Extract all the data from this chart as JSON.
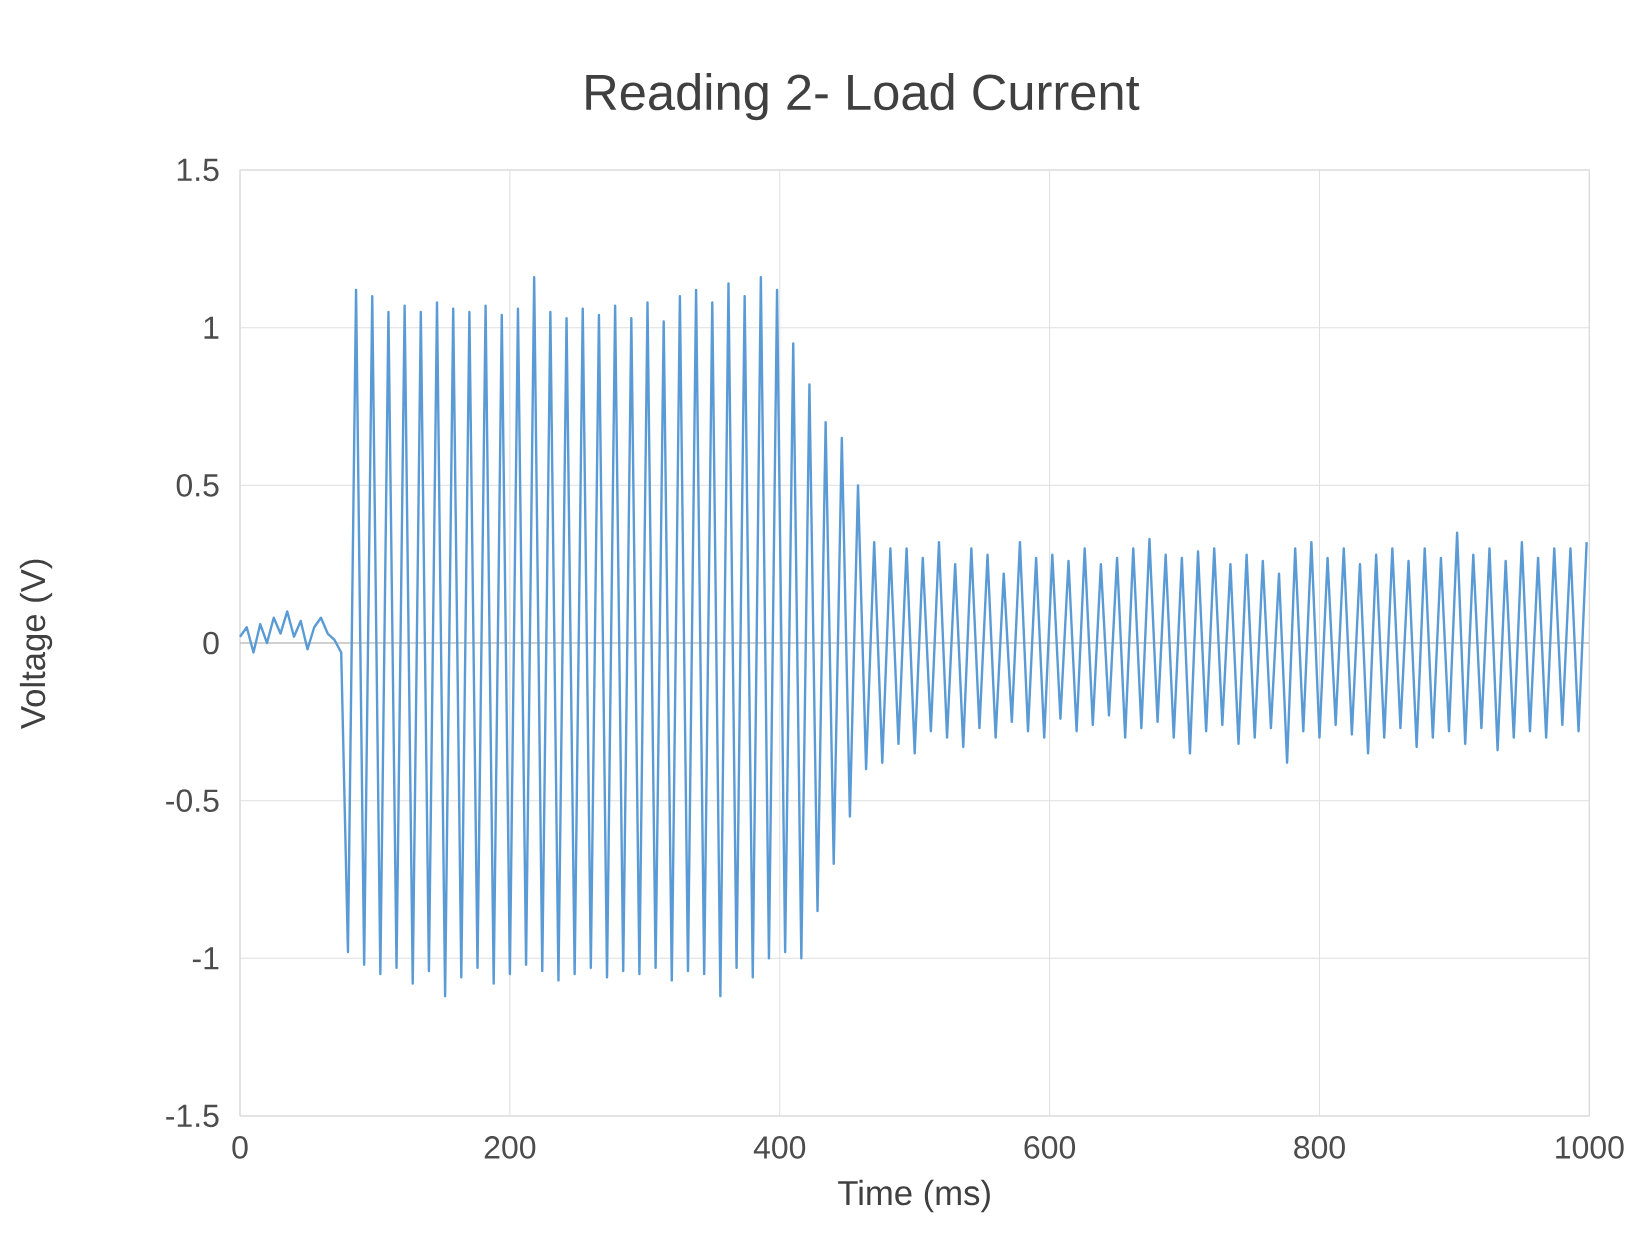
{
  "chart_data": {
    "type": "line",
    "title": "Reading 2- Load Current",
    "xlabel": "Time (ms)",
    "ylabel": "Voltage (V)",
    "xlim": [
      0,
      1000
    ],
    "ylim": [
      -1.5,
      1.5
    ],
    "xticks": [
      0,
      200,
      400,
      600,
      800,
      1000
    ],
    "yticks": [
      -1.5,
      -1,
      -0.5,
      0,
      0.5,
      1,
      1.5
    ],
    "grid": true,
    "x": [
      0,
      5,
      10,
      15,
      20,
      25,
      30,
      35,
      40,
      45,
      50,
      55,
      60,
      65,
      70,
      75,
      80,
      86,
      92,
      98,
      104,
      110,
      116,
      122,
      128,
      134,
      140,
      146,
      152,
      158,
      164,
      170,
      176,
      182,
      188,
      194,
      200,
      206,
      212,
      218,
      224,
      230,
      236,
      242,
      248,
      254,
      260,
      266,
      272,
      278,
      284,
      290,
      296,
      302,
      308,
      314,
      320,
      326,
      332,
      338,
      344,
      350,
      356,
      362,
      368,
      374,
      380,
      386,
      392,
      398,
      404,
      410,
      416,
      422,
      428,
      434,
      440,
      446,
      452,
      458,
      464,
      470,
      476,
      482,
      488,
      494,
      500,
      506,
      512,
      518,
      524,
      530,
      536,
      542,
      548,
      554,
      560,
      566,
      572,
      578,
      584,
      590,
      596,
      602,
      608,
      614,
      620,
      626,
      632,
      638,
      644,
      650,
      656,
      662,
      668,
      674,
      680,
      686,
      692,
      698,
      704,
      710,
      716,
      722,
      728,
      734,
      740,
      746,
      752,
      758,
      764,
      770,
      776,
      782,
      788,
      794,
      800,
      806,
      812,
      818,
      824,
      830,
      836,
      842,
      848,
      854,
      860,
      866,
      872,
      878,
      884,
      890,
      896,
      902,
      908,
      914,
      920,
      926,
      932,
      938,
      944,
      950,
      956,
      962,
      968,
      974,
      980,
      986,
      992,
      998
    ],
    "series": [
      {
        "color": "#5b9bd5",
        "values": [
          0.02,
          0.05,
          -0.03,
          0.06,
          0.0,
          0.08,
          0.03,
          0.1,
          0.02,
          0.07,
          -0.02,
          0.05,
          0.08,
          0.03,
          0.01,
          -0.03,
          -0.98,
          1.12,
          -1.02,
          1.1,
          -1.05,
          1.05,
          -1.03,
          1.07,
          -1.08,
          1.05,
          -1.04,
          1.08,
          -1.12,
          1.06,
          -1.06,
          1.05,
          -1.03,
          1.07,
          -1.08,
          1.04,
          -1.05,
          1.06,
          -1.02,
          1.16,
          -1.04,
          1.05,
          -1.07,
          1.03,
          -1.05,
          1.06,
          -1.03,
          1.04,
          -1.06,
          1.07,
          -1.04,
          1.03,
          -1.05,
          1.08,
          -1.03,
          1.02,
          -1.07,
          1.1,
          -1.04,
          1.12,
          -1.05,
          1.08,
          -1.12,
          1.14,
          -1.03,
          1.1,
          -1.06,
          1.16,
          -1.0,
          1.12,
          -0.98,
          0.95,
          -1.0,
          0.82,
          -0.85,
          0.7,
          -0.7,
          0.65,
          -0.55,
          0.5,
          -0.4,
          0.32,
          -0.38,
          0.3,
          -0.32,
          0.3,
          -0.35,
          0.27,
          -0.28,
          0.32,
          -0.3,
          0.25,
          -0.33,
          0.3,
          -0.27,
          0.28,
          -0.3,
          0.22,
          -0.25,
          0.32,
          -0.28,
          0.27,
          -0.3,
          0.28,
          -0.24,
          0.26,
          -0.28,
          0.3,
          -0.26,
          0.25,
          -0.23,
          0.27,
          -0.3,
          0.3,
          -0.27,
          0.33,
          -0.25,
          0.28,
          -0.3,
          0.27,
          -0.35,
          0.29,
          -0.28,
          0.3,
          -0.26,
          0.25,
          -0.32,
          0.28,
          -0.3,
          0.26,
          -0.27,
          0.22,
          -0.38,
          0.3,
          -0.28,
          0.32,
          -0.3,
          0.27,
          -0.26,
          0.3,
          -0.29,
          0.25,
          -0.35,
          0.28,
          -0.3,
          0.3,
          -0.27,
          0.26,
          -0.33,
          0.3,
          -0.3,
          0.27,
          -0.28,
          0.35,
          -0.32,
          0.28,
          -0.27,
          0.3,
          -0.34,
          0.26,
          -0.3,
          0.32,
          -0.28,
          0.27,
          -0.3,
          0.3,
          -0.26,
          0.3,
          -0.28,
          0.32
        ]
      }
    ]
  }
}
